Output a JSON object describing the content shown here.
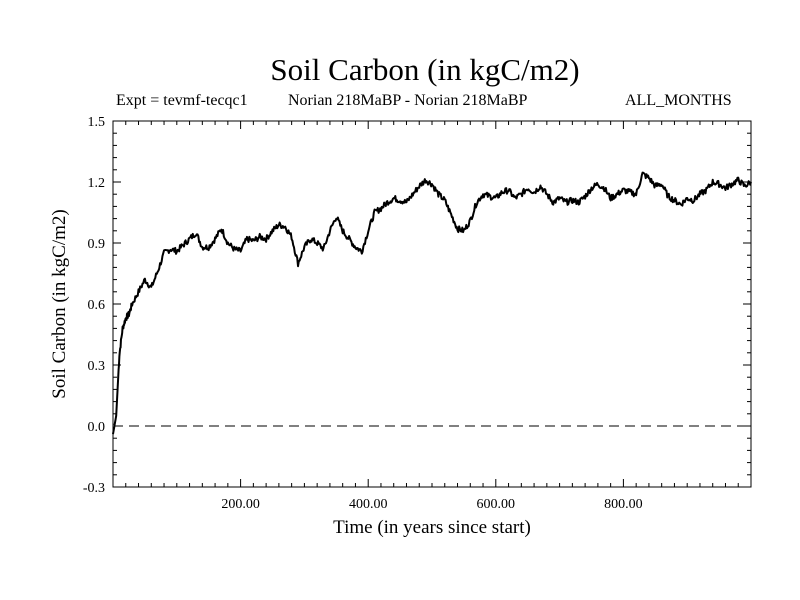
{
  "header": {
    "title": "Soil Carbon (in kgC/m2)",
    "experiment": "Expt = tevmf-tecqc1",
    "comparison": "Norian 218MaBP - Norian 218MaBP",
    "period": "ALL_MONTHS"
  },
  "chart_data": {
    "type": "line",
    "title": "Soil Carbon (in kgC/m2)",
    "xlabel": "Time (in years since start)",
    "ylabel": "Soil Carbon (in kgC/m2)",
    "xlim": [
      0,
      1000
    ],
    "ylim": [
      -0.3,
      1.5
    ],
    "x_ticks": [
      200,
      400,
      600,
      800
    ],
    "x_tick_labels": [
      "200.00",
      "400.00",
      "600.00",
      "800.00"
    ],
    "y_ticks": [
      -0.3,
      0.0,
      0.3,
      0.6,
      0.9,
      1.2,
      1.5
    ],
    "y_tick_labels": [
      "-0.3",
      "0.0",
      "0.3",
      "0.6",
      "0.9",
      "1.2",
      "1.5"
    ],
    "reference_line": {
      "y": 0.0,
      "style": "dashed",
      "color": "#808080"
    },
    "series": [
      {
        "name": "Soil Carbon",
        "color": "#000000",
        "x": [
          0,
          5,
          10,
          15,
          20,
          25,
          30,
          40,
          50,
          60,
          70,
          80,
          90,
          100,
          110,
          120,
          130,
          140,
          150,
          160,
          170,
          180,
          190,
          200,
          210,
          220,
          230,
          240,
          250,
          260,
          270,
          280,
          290,
          300,
          310,
          320,
          330,
          340,
          350,
          360,
          370,
          380,
          390,
          400,
          410,
          420,
          430,
          440,
          450,
          460,
          470,
          480,
          490,
          500,
          510,
          520,
          530,
          540,
          550,
          560,
          570,
          580,
          590,
          600,
          610,
          620,
          630,
          640,
          650,
          660,
          670,
          680,
          690,
          700,
          710,
          720,
          730,
          740,
          750,
          760,
          770,
          780,
          790,
          800,
          810,
          820,
          830,
          840,
          850,
          860,
          870,
          880,
          890,
          900,
          910,
          920,
          930,
          940,
          950,
          960,
          970,
          980,
          990,
          1000
        ],
        "values": [
          -0.04,
          0.05,
          0.35,
          0.48,
          0.53,
          0.55,
          0.6,
          0.66,
          0.72,
          0.68,
          0.76,
          0.85,
          0.87,
          0.86,
          0.89,
          0.92,
          0.95,
          0.88,
          0.88,
          0.92,
          0.97,
          0.9,
          0.87,
          0.86,
          0.92,
          0.91,
          0.93,
          0.92,
          0.96,
          0.99,
          0.98,
          0.93,
          0.8,
          0.88,
          0.92,
          0.9,
          0.87,
          0.96,
          1.03,
          0.96,
          0.92,
          0.88,
          0.86,
          0.96,
          1.05,
          1.07,
          1.1,
          1.12,
          1.11,
          1.1,
          1.14,
          1.18,
          1.21,
          1.19,
          1.14,
          1.11,
          1.04,
          0.97,
          0.96,
          1.01,
          1.1,
          1.14,
          1.13,
          1.12,
          1.15,
          1.16,
          1.12,
          1.14,
          1.17,
          1.15,
          1.18,
          1.14,
          1.1,
          1.12,
          1.1,
          1.11,
          1.1,
          1.13,
          1.17,
          1.19,
          1.17,
          1.12,
          1.14,
          1.16,
          1.15,
          1.14,
          1.24,
          1.22,
          1.18,
          1.19,
          1.13,
          1.11,
          1.09,
          1.12,
          1.11,
          1.14,
          1.16,
          1.2,
          1.19,
          1.17,
          1.19,
          1.21,
          1.18,
          1.2
        ]
      }
    ]
  }
}
